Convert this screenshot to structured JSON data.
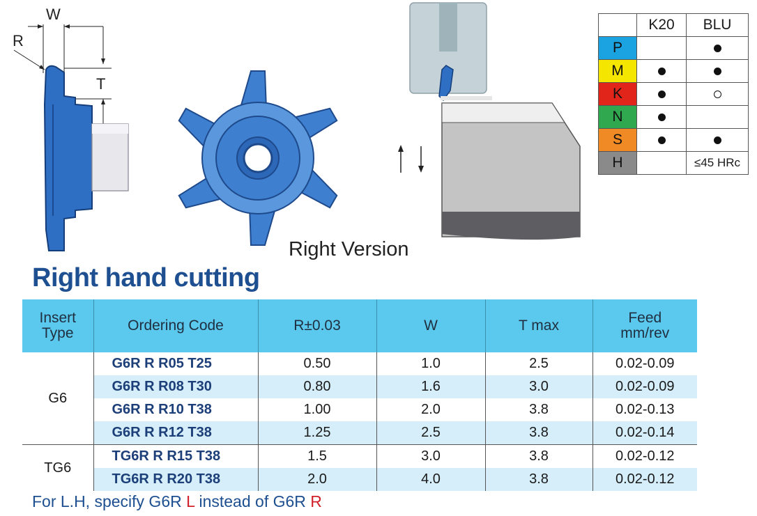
{
  "drawing_labels": {
    "w": "W",
    "r": "R",
    "t": "T"
  },
  "caption": "Right Version",
  "title": "Right hand cutting",
  "iso_table": {
    "headers": [
      "",
      "K20",
      "BLU"
    ],
    "rows": [
      {
        "code": "P",
        "color": "#1aa3e0",
        "k20": "",
        "blu": "dot"
      },
      {
        "code": "M",
        "color": "#f5e600",
        "k20": "dot",
        "blu": "dot"
      },
      {
        "code": "K",
        "color": "#e1251b",
        "k20": "dot",
        "blu": "ring"
      },
      {
        "code": "N",
        "color": "#2fa84f",
        "k20": "dot",
        "blu": ""
      },
      {
        "code": "S",
        "color": "#f08a24",
        "k20": "dot",
        "blu": "dot"
      },
      {
        "code": "H",
        "color": "#8a8a8a",
        "k20": "",
        "blu": "≤45 HRc"
      }
    ]
  },
  "table": {
    "headers": {
      "insert_type_1": "Insert",
      "insert_type_2": "Type",
      "ordering_code": "Ordering Code",
      "r": "R±0.03",
      "w": "W",
      "t": "T max",
      "feed_1": "Feed",
      "feed_2": "mm/rev"
    },
    "groups": [
      {
        "type": "G6",
        "rows": [
          {
            "code": "G6R R R05 T25",
            "r": "0.50",
            "w": "1.0",
            "t": "2.5",
            "feed": "0.02-0.09"
          },
          {
            "code": "G6R R R08 T30",
            "r": "0.80",
            "w": "1.6",
            "t": "3.0",
            "feed": "0.02-0.09"
          },
          {
            "code": "G6R R R10 T38",
            "r": "1.00",
            "w": "2.0",
            "t": "3.8",
            "feed": "0.02-0.13"
          },
          {
            "code": "G6R R R12 T38",
            "r": "1.25",
            "w": "2.5",
            "t": "3.8",
            "feed": "0.02-0.14"
          }
        ]
      },
      {
        "type": "TG6",
        "rows": [
          {
            "code": "TG6R R R15 T38",
            "r": "1.5",
            "w": "3.0",
            "t": "3.8",
            "feed": "0.02-0.12"
          },
          {
            "code": "TG6R R R20 T38",
            "r": "2.0",
            "w": "4.0",
            "t": "3.8",
            "feed": "0.02-0.12"
          }
        ]
      }
    ]
  },
  "footnote": {
    "prefix": "For L.H, specify G6R ",
    "l": "L",
    "middle": " instead of G6R ",
    "r": "R"
  }
}
